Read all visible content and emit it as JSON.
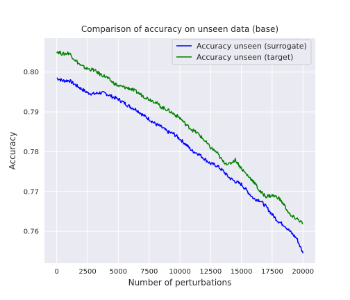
{
  "chart_data": {
    "type": "line",
    "title": "Comparison of accuracy on unseen data (base)",
    "xlabel": "Number of perturbations",
    "ylabel": "Accuracy",
    "xlim": [
      -1000,
      21000
    ],
    "ylim": [
      0.752,
      0.8085
    ],
    "xticks": [
      0,
      2500,
      5000,
      7500,
      10000,
      12500,
      15000,
      17500,
      20000
    ],
    "xtick_labels": [
      "0",
      "2500",
      "5000",
      "7500",
      "10000",
      "12500",
      "15000",
      "17500",
      "20000"
    ],
    "yticks": [
      0.76,
      0.77,
      0.78,
      0.79,
      0.8
    ],
    "ytick_labels": [
      "0.76",
      "0.77",
      "0.78",
      "0.79",
      "0.80"
    ],
    "grid": true,
    "legend_position": "top-right",
    "series": [
      {
        "name": "Accuracy unseen (surrogate)",
        "color": "#0000ff",
        "x": [
          0,
          500,
          1000,
          1500,
          2000,
          2500,
          3000,
          3500,
          4000,
          4500,
          5000,
          5500,
          6000,
          6500,
          7000,
          7500,
          8000,
          8500,
          9000,
          9500,
          10000,
          10500,
          11000,
          11500,
          12000,
          12500,
          13000,
          13500,
          14000,
          14500,
          15000,
          15500,
          16000,
          16500,
          17000,
          17500,
          18000,
          18500,
          19000,
          19500,
          20000
        ],
        "y": [
          0.7985,
          0.7978,
          0.7979,
          0.7968,
          0.7958,
          0.7948,
          0.7945,
          0.7948,
          0.7946,
          0.7938,
          0.7932,
          0.7922,
          0.7912,
          0.7905,
          0.7892,
          0.7882,
          0.787,
          0.7862,
          0.785,
          0.7845,
          0.7832,
          0.7818,
          0.7802,
          0.7795,
          0.7782,
          0.777,
          0.7765,
          0.7752,
          0.7735,
          0.7725,
          0.7718,
          0.77,
          0.7682,
          0.7678,
          0.7662,
          0.7642,
          0.7625,
          0.7615,
          0.7598,
          0.7582,
          0.7545
        ]
      },
      {
        "name": "Accuracy unseen (target)",
        "color": "#008000",
        "x": [
          0,
          500,
          1000,
          1500,
          2000,
          2500,
          3000,
          3500,
          4000,
          4500,
          5000,
          5500,
          6000,
          6500,
          7000,
          7500,
          8000,
          8500,
          9000,
          9500,
          10000,
          10500,
          11000,
          11500,
          12000,
          12500,
          13000,
          13500,
          14000,
          14500,
          15000,
          15500,
          16000,
          16500,
          17000,
          17500,
          18000,
          18500,
          19000,
          19500,
          20000
        ],
        "y": [
          0.8052,
          0.8045,
          0.8048,
          0.803,
          0.8015,
          0.8008,
          0.8005,
          0.7995,
          0.7988,
          0.7975,
          0.7965,
          0.7962,
          0.7958,
          0.795,
          0.794,
          0.7932,
          0.7925,
          0.7912,
          0.7905,
          0.7895,
          0.7885,
          0.7868,
          0.7855,
          0.7845,
          0.7828,
          0.781,
          0.7798,
          0.7775,
          0.7768,
          0.778,
          0.7758,
          0.774,
          0.7725,
          0.77,
          0.7688,
          0.769,
          0.7685,
          0.7665,
          0.7638,
          0.7632,
          0.762
        ]
      }
    ]
  }
}
